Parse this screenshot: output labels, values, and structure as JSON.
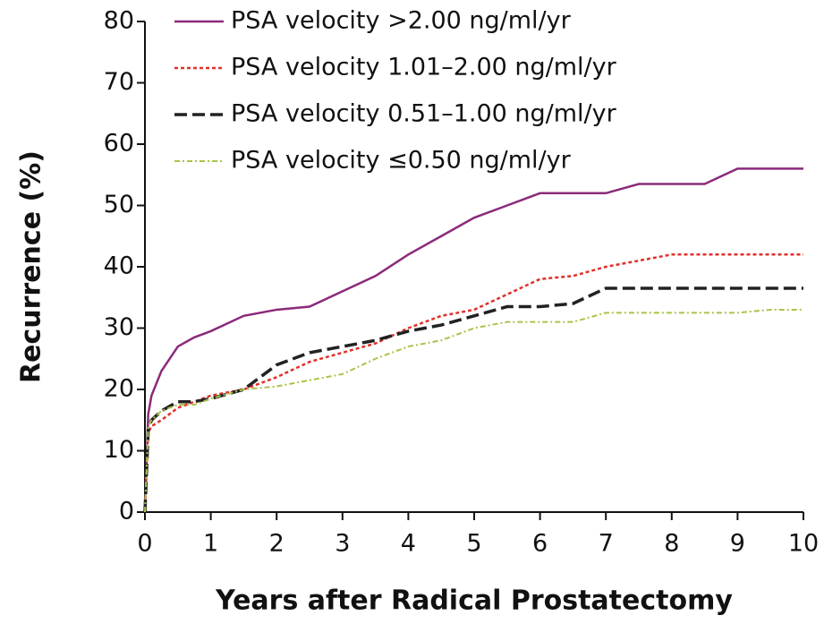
{
  "chart_data": {
    "type": "line",
    "xlabel": "Years after Radical Prostatectomy",
    "ylabel": "Recurrence (%)",
    "x": [
      0,
      0.05,
      0.1,
      0.25,
      0.5,
      0.75,
      1,
      1.5,
      2,
      2.5,
      3,
      3.5,
      4,
      4.5,
      5,
      5.5,
      6,
      6.5,
      7,
      7.5,
      8,
      8.5,
      9,
      9.5,
      10
    ],
    "series": [
      {
        "name": "PSA velocity >2.00 ng/ml/yr",
        "color": "#8b2a7a",
        "dash": "solid",
        "values": [
          0,
          16,
          19,
          23,
          27,
          28.5,
          29.5,
          32,
          33,
          33.5,
          36,
          38.5,
          42,
          45,
          48,
          50,
          52,
          52,
          52,
          53.5,
          53.5,
          53.5,
          56,
          56,
          56
        ]
      },
      {
        "name": "PSA velocity 1.01–2.00 ng/ml/yr",
        "color": "#e0302a",
        "dash": "dotted",
        "values": [
          0,
          13,
          14,
          15,
          17,
          18,
          19,
          20,
          22,
          24.5,
          26,
          27.5,
          30,
          32,
          33,
          35.5,
          38,
          38.5,
          40,
          41,
          42,
          42,
          42,
          42,
          42
        ]
      },
      {
        "name": "PSA velocity 0.51–1.00 ng/ml/yr",
        "color": "#222222",
        "dash": "dashed",
        "values": [
          0,
          13.5,
          15,
          16.5,
          18,
          18,
          18.5,
          20,
          24,
          26,
          27,
          28,
          29.5,
          30.5,
          32,
          33.5,
          33.5,
          34,
          36.5,
          36.5,
          36.5,
          36.5,
          36.5,
          36.5,
          36.5
        ]
      },
      {
        "name": "PSA velocity ≤0.50 ng/ml/yr",
        "color": "#a8c44a",
        "dash": "dashdot",
        "values": [
          0,
          14,
          15,
          16.5,
          17.5,
          17.5,
          18.5,
          20,
          20.5,
          21.5,
          22.5,
          25,
          27,
          28,
          30,
          31,
          31,
          31,
          32.5,
          32.5,
          32.5,
          32.5,
          32.5,
          33,
          33
        ]
      }
    ],
    "xlim": [
      0,
      10
    ],
    "xticks": [
      0,
      1,
      2,
      3,
      4,
      5,
      6,
      7,
      8,
      9,
      10
    ],
    "ylim": [
      0,
      80
    ],
    "yticks": [
      0,
      10,
      20,
      30,
      40,
      50,
      60,
      70,
      80
    ],
    "grid": false,
    "legend": "upper left"
  }
}
